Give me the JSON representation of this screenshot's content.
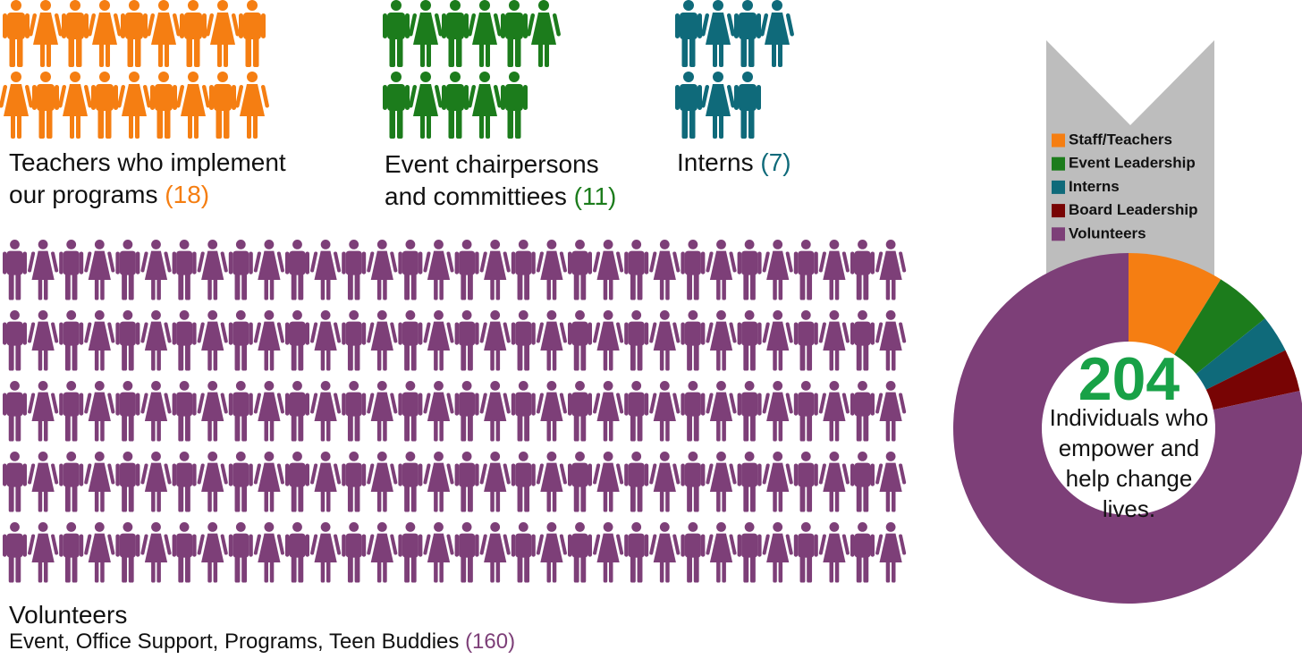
{
  "chart_data": [
    {
      "type": "pictogram",
      "categories": [
        "Teachers who implement our programs",
        "Event chairpersons and committiees",
        "Interns",
        "Volunteers"
      ],
      "values": [
        18,
        11,
        7,
        160
      ],
      "value_labels": [
        "(18)",
        "(11)",
        "(7)",
        "(160)"
      ],
      "colors": [
        "#f57e12",
        "#1c7c1c",
        "#0f6a7a",
        "#7d3f78"
      ],
      "note": "Event, Office Support, Programs, Teen Buddies"
    },
    {
      "type": "donut",
      "series": [
        {
          "name": "Staff/Teachers",
          "color": "#f57e12",
          "value": 18
        },
        {
          "name": "Event Leadership",
          "color": "#1c7c1c",
          "value": 11
        },
        {
          "name": "Interns",
          "color": "#0f6a7a",
          "value": 7
        },
        {
          "name": "Board Leadership",
          "color": "#780404",
          "value": 8
        },
        {
          "name": "Volunteers",
          "color": "#7d3f78",
          "value": 160
        }
      ],
      "center_value": 204,
      "center_color": "#18a147",
      "center_label": "Individuals who empower and help change lives."
    }
  ]
}
